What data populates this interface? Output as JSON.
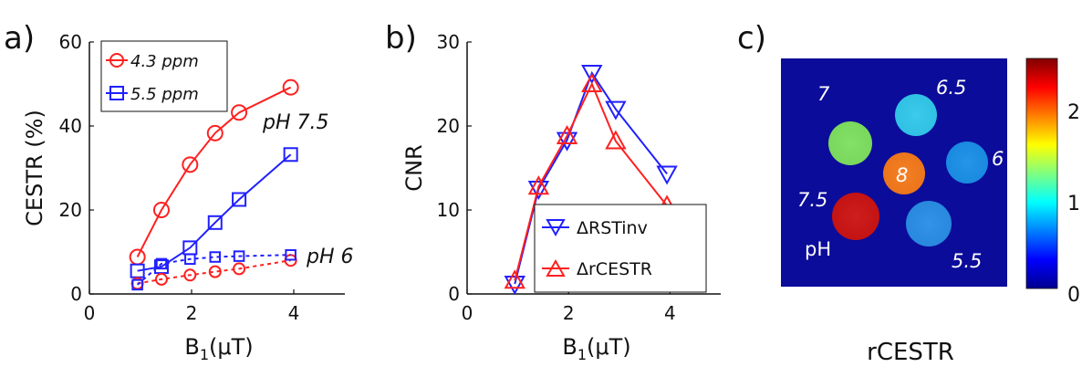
{
  "chart_data": [
    {
      "type": "line",
      "panel_label": "a)",
      "xlabel": "B",
      "xlabel_sub": "1",
      "xlabel_unit": "(μT)",
      "ylabel": "CESTR (%)",
      "xlim": [
        0,
        5
      ],
      "ylim": [
        0,
        60
      ],
      "xticks": [
        "0",
        "2",
        "4"
      ],
      "yticks": [
        "0",
        "20",
        "40",
        "60"
      ],
      "annotations": [
        "pH 7.5",
        "pH 6"
      ],
      "legend_placement": "top-left",
      "series": [
        {
          "name": "4.3 ppm",
          "pH": "7.5",
          "color": "#ff2020",
          "marker": "circle",
          "dash": false,
          "legend": true,
          "x": [
            0.94,
            1.41,
            1.97,
            2.46,
            2.93,
            3.94
          ],
          "y": [
            8.8,
            20,
            30.8,
            38.3,
            43.2,
            49.2
          ]
        },
        {
          "name": "5.5 ppm",
          "pH": "7.5",
          "color": "#2020ff",
          "marker": "square",
          "dash": false,
          "legend": true,
          "x": [
            0.94,
            1.41,
            1.97,
            2.46,
            2.93,
            3.94
          ],
          "y": [
            5.5,
            6.5,
            11,
            17,
            22.5,
            33.2
          ]
        },
        {
          "name": "",
          "pH": "6",
          "color": "#ff2020",
          "marker": "circle",
          "dash": true,
          "legend": false,
          "x": [
            0.94,
            1.41,
            1.97,
            2.46,
            2.93,
            3.94
          ],
          "y": [
            2.5,
            3.5,
            4.5,
            5.3,
            6,
            8
          ]
        },
        {
          "name": "",
          "pH": "6",
          "color": "#2020ff",
          "marker": "square",
          "dash": true,
          "legend": false,
          "x": [
            0.94,
            1.41,
            1.97,
            2.46,
            2.93,
            3.94
          ],
          "y": [
            2.2,
            7.2,
            8.3,
            8.8,
            9,
            9.3
          ]
        }
      ]
    },
    {
      "type": "line",
      "panel_label": "b)",
      "xlabel": "B",
      "xlabel_sub": "1",
      "xlabel_unit": "(μT)",
      "ylabel": "CNR",
      "xlim": [
        0,
        5
      ],
      "ylim": [
        0,
        30
      ],
      "xticks": [
        "0",
        "2",
        "4"
      ],
      "yticks": [
        "0",
        "10",
        "20",
        "30"
      ],
      "legend_placement": "bottom-right",
      "series": [
        {
          "name": "ΔRSTinv",
          "color": "#2020ff",
          "marker": "triangle-down",
          "x": [
            0.94,
            1.41,
            1.97,
            2.46,
            2.93,
            3.94
          ],
          "y": [
            1.2,
            12.5,
            18.3,
            26.3,
            22,
            14.3
          ]
        },
        {
          "name": "ΔrCESTR",
          "color": "#ff2020",
          "marker": "triangle-up",
          "x": [
            0.94,
            1.41,
            1.97,
            2.46,
            2.93,
            3.94
          ],
          "y": [
            1.6,
            12.8,
            18.8,
            25,
            18.2,
            10.5
          ]
        }
      ]
    },
    {
      "type": "heatmap",
      "panel_label": "c)",
      "caption": "rCESTR",
      "colormap": "jet",
      "colorbar_ticks": [
        "2",
        "1",
        "0"
      ],
      "labels": [
        "7",
        "6.5",
        "8",
        "6",
        "7.5",
        "5.5",
        "pH"
      ],
      "phantoms": [
        {
          "pH": "7",
          "color": "#7fe061"
        },
        {
          "pH": "6.5",
          "color": "#32c8ec"
        },
        {
          "pH": "8",
          "color": "#f57a1c"
        },
        {
          "pH": "6",
          "color": "#1b90e8"
        },
        {
          "pH": "7.5",
          "color": "#cc1414"
        },
        {
          "pH": "5.5",
          "color": "#2a8ee6"
        }
      ],
      "background_color": "#0c0c9a"
    }
  ]
}
